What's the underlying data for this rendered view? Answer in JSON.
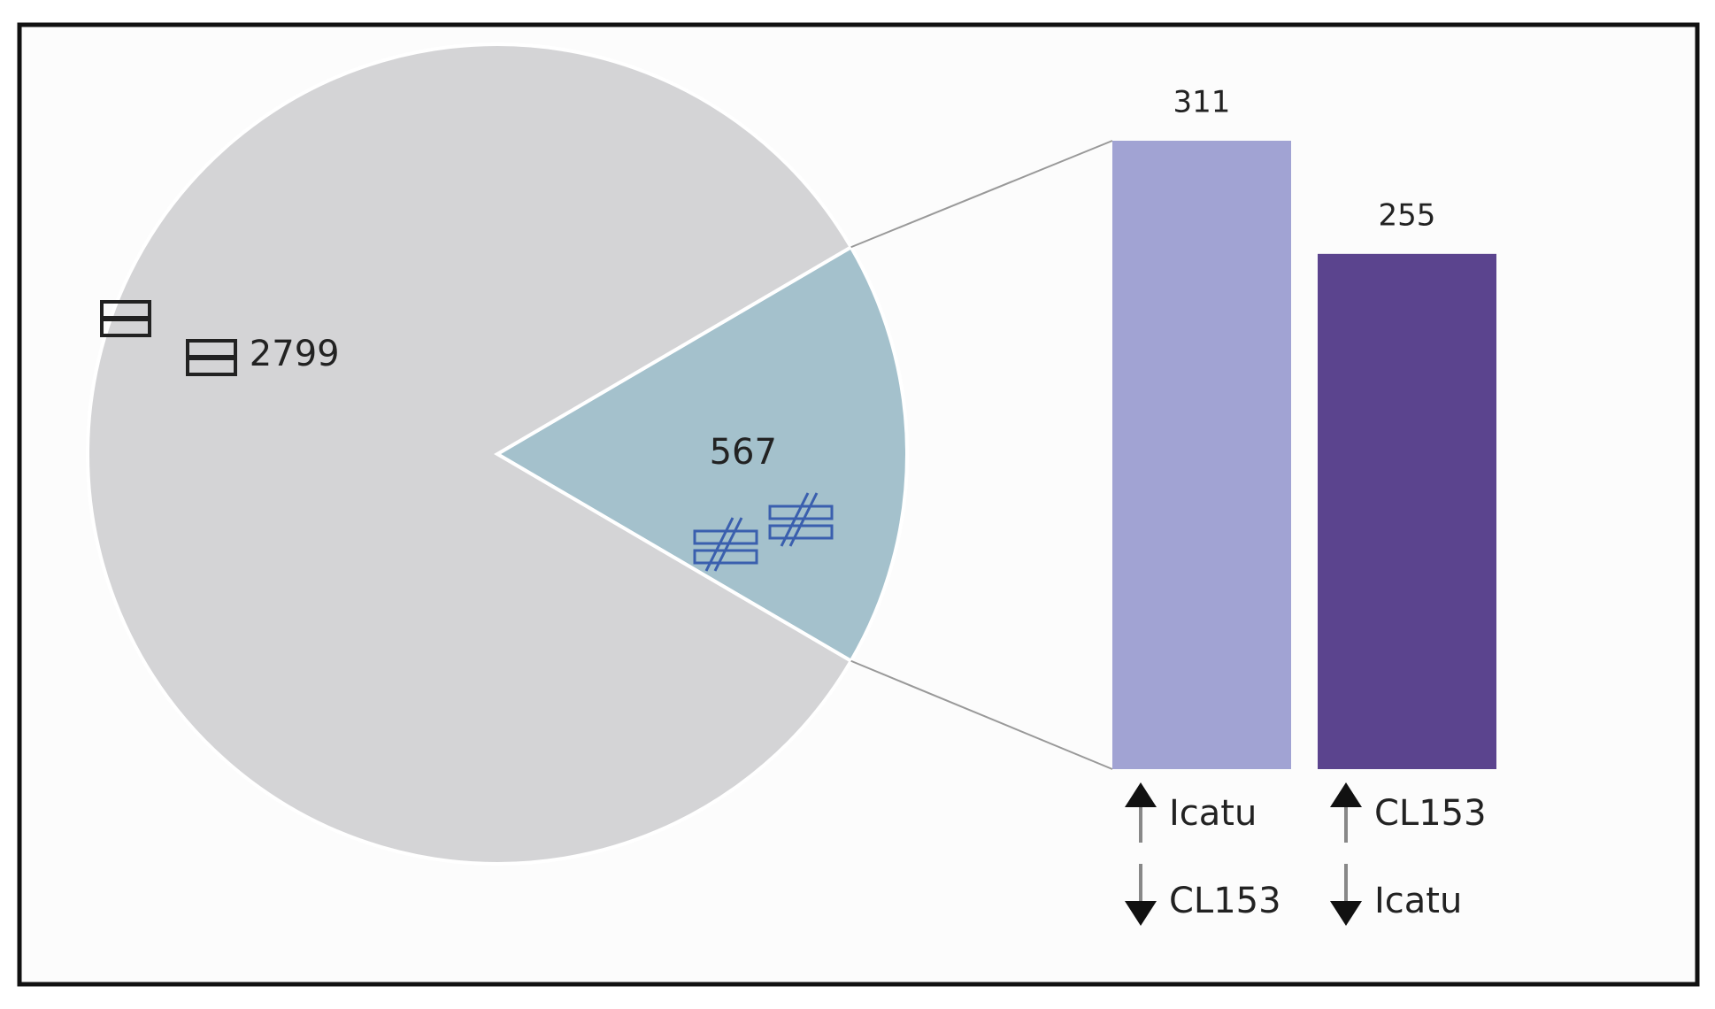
{
  "chart_data": [
    {
      "type": "pie",
      "values": [
        2799,
        567
      ],
      "colors": [
        "#d4d4d6",
        "#a4c1cc"
      ]
    },
    {
      "type": "bar",
      "values": [
        311,
        255
      ],
      "colors": [
        "#a1a3d3",
        "#5b448e"
      ],
      "up_labels": [
        "Icatu",
        "CL153"
      ],
      "down_labels": [
        "CL153",
        "Icatu"
      ]
    }
  ]
}
